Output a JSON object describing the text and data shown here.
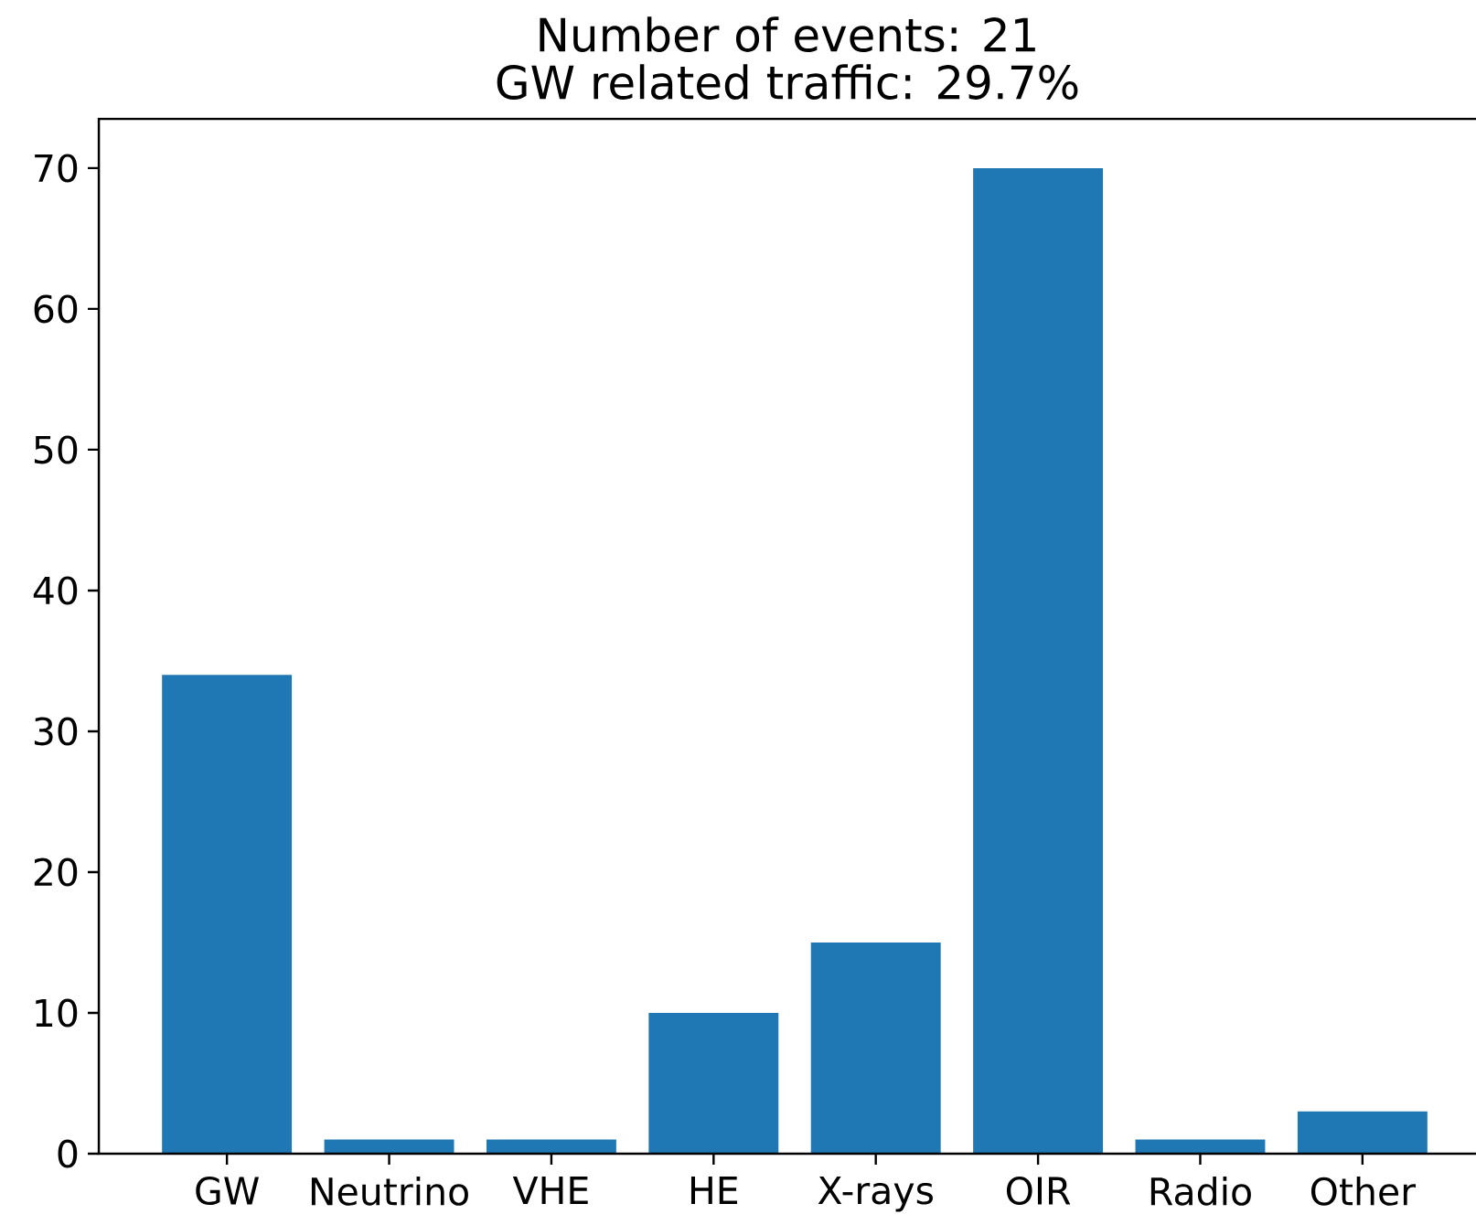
{
  "chart_data": {
    "type": "bar",
    "title": "Number of events: 21",
    "subtitle": "GW related traffic: 29.7%",
    "categories": [
      "GW",
      "Neutrino",
      "VHE",
      "HE",
      "X-rays",
      "OIR",
      "Radio",
      "Other"
    ],
    "values": [
      34,
      1,
      1,
      10,
      15,
      70,
      1,
      3
    ],
    "color": "#1f77b4",
    "ylim": [
      0,
      73.5
    ],
    "yticks": [
      0,
      10,
      20,
      30,
      40,
      50,
      60,
      70
    ]
  }
}
